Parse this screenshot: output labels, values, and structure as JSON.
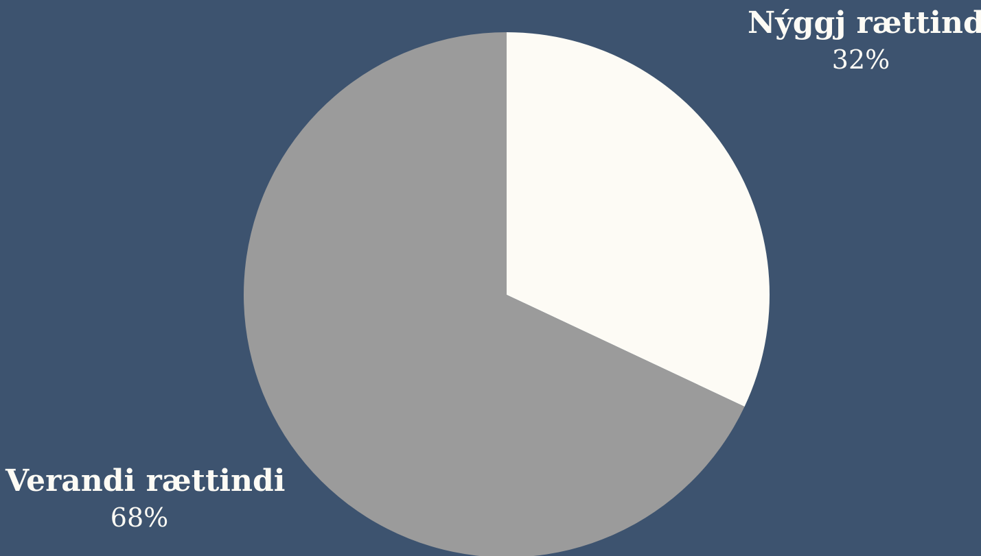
{
  "chart_data": {
    "type": "pie",
    "title": "",
    "slices": [
      {
        "label": "Nýggj rættindi",
        "value": 32,
        "value_label": "32%",
        "color": "#fdfbf5"
      },
      {
        "label": "Verandi rættindi",
        "value": 68,
        "value_label": "68%",
        "color": "#9b9b9b"
      }
    ],
    "start_angle": "12 o'clock",
    "direction": "clockwise",
    "background_color": "#3d536f"
  }
}
